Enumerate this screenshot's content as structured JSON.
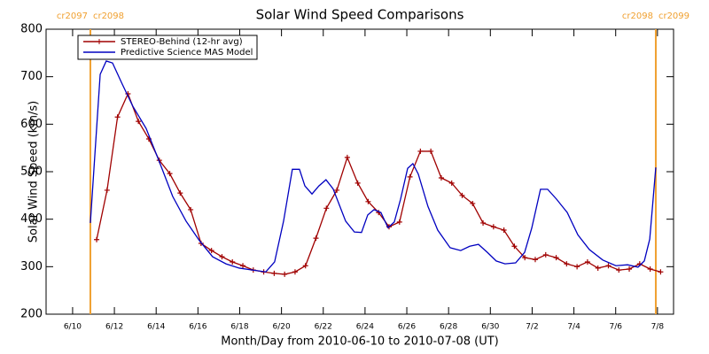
{
  "chart_data": {
    "type": "line",
    "title": "Solar Wind Speed Comparisons",
    "xlabel": "Month/Day from 2010-06-10 to 2010-07-08 (UT)",
    "ylabel": "Solar Wind Speed (km/s)",
    "xlim": [
      -1.27,
      28.77
    ],
    "xticks": [
      {
        "value": 0,
        "label": "6/10"
      },
      {
        "value": 2,
        "label": "6/12"
      },
      {
        "value": 4,
        "label": "6/14"
      },
      {
        "value": 6,
        "label": "6/16"
      },
      {
        "value": 8,
        "label": "6/18"
      },
      {
        "value": 10,
        "label": "6/20"
      },
      {
        "value": 12,
        "label": "6/22"
      },
      {
        "value": 14,
        "label": "6/24"
      },
      {
        "value": 16,
        "label": "6/26"
      },
      {
        "value": 18,
        "label": "6/28"
      },
      {
        "value": 20,
        "label": "6/30"
      },
      {
        "value": 22,
        "label": "7/2"
      },
      {
        "value": 24,
        "label": "7/4"
      },
      {
        "value": 26,
        "label": "7/6"
      },
      {
        "value": 28,
        "label": "7/8"
      }
    ],
    "ylim": [
      200,
      800
    ],
    "yticks": [
      200,
      300,
      400,
      500,
      600,
      700,
      800
    ],
    "legend": "upper left",
    "markers": [
      {
        "x": 0.85,
        "color": "#f0a030",
        "labels": [
          "cr2097",
          "cr2098"
        ]
      },
      {
        "x": 27.92,
        "color": "#f0a030",
        "labels": [
          "cr2098",
          "cr2099"
        ]
      }
    ],
    "series": [
      {
        "name": "STEREO-Behind (12-hr avg)",
        "color": "#a00000",
        "marker": "+",
        "x": [
          1.15,
          1.65,
          2.15,
          2.65,
          3.15,
          3.65,
          4.15,
          4.65,
          5.15,
          5.65,
          6.15,
          6.65,
          7.15,
          7.65,
          8.15,
          8.65,
          9.15,
          9.65,
          10.15,
          10.65,
          11.15,
          11.65,
          12.15,
          12.65,
          13.15,
          13.65,
          14.15,
          14.65,
          15.15,
          15.65,
          16.15,
          16.65,
          17.15,
          17.65,
          18.15,
          18.65,
          19.15,
          19.65,
          20.15,
          20.65,
          21.15,
          21.65,
          22.15,
          22.65,
          23.15,
          23.65,
          24.15,
          24.65,
          25.15,
          25.65,
          26.15,
          26.65,
          27.15,
          27.65,
          28.15
        ],
        "values": [
          357,
          461,
          615,
          664,
          606,
          569,
          524,
          496,
          455,
          420,
          349,
          334,
          321,
          310,
          302,
          293,
          289,
          286,
          284,
          289,
          302,
          360,
          423,
          461,
          530,
          476,
          437,
          414,
          384,
          394,
          489,
          543,
          543,
          487,
          476,
          450,
          433,
          392,
          384,
          377,
          343,
          319,
          315,
          325,
          319,
          306,
          300,
          310,
          297,
          302,
          293,
          295,
          306,
          295,
          289
        ]
      },
      {
        "name": "Predictive Science MAS Model",
        "color": "#0000c0",
        "marker": null,
        "x": [
          0.85,
          1.32,
          1.61,
          1.91,
          2.38,
          2.88,
          3.52,
          4.16,
          4.79,
          5.43,
          6.07,
          6.7,
          7.34,
          7.98,
          8.61,
          9.25,
          9.67,
          10.1,
          10.52,
          10.86,
          11.12,
          11.46,
          11.79,
          12.13,
          12.47,
          13.07,
          13.49,
          13.83,
          14.13,
          14.43,
          14.76,
          15.1,
          15.4,
          15.7,
          16.04,
          16.29,
          16.55,
          17.01,
          17.48,
          18.07,
          18.58,
          19.01,
          19.43,
          19.86,
          20.28,
          20.7,
          21.21,
          21.64,
          21.98,
          22.4,
          22.74,
          23.17,
          23.68,
          24.19,
          24.74,
          25.38,
          26.01,
          26.57,
          27.07,
          27.37,
          27.63,
          27.92
        ],
        "values": [
          392,
          705,
          733,
          729,
          684,
          638,
          591,
          520,
          448,
          396,
          355,
          321,
          306,
          297,
          293,
          289,
          310,
          396,
          505,
          505,
          470,
          453,
          470,
          483,
          464,
          396,
          373,
          372,
          409,
          420,
          414,
          382,
          394,
          442,
          507,
          517,
          495,
          427,
          377,
          340,
          334,
          343,
          347,
          330,
          312,
          306,
          308,
          330,
          381,
          463,
          463,
          442,
          414,
          367,
          336,
          314,
          302,
          304,
          299,
          312,
          358,
          509
        ]
      }
    ]
  }
}
